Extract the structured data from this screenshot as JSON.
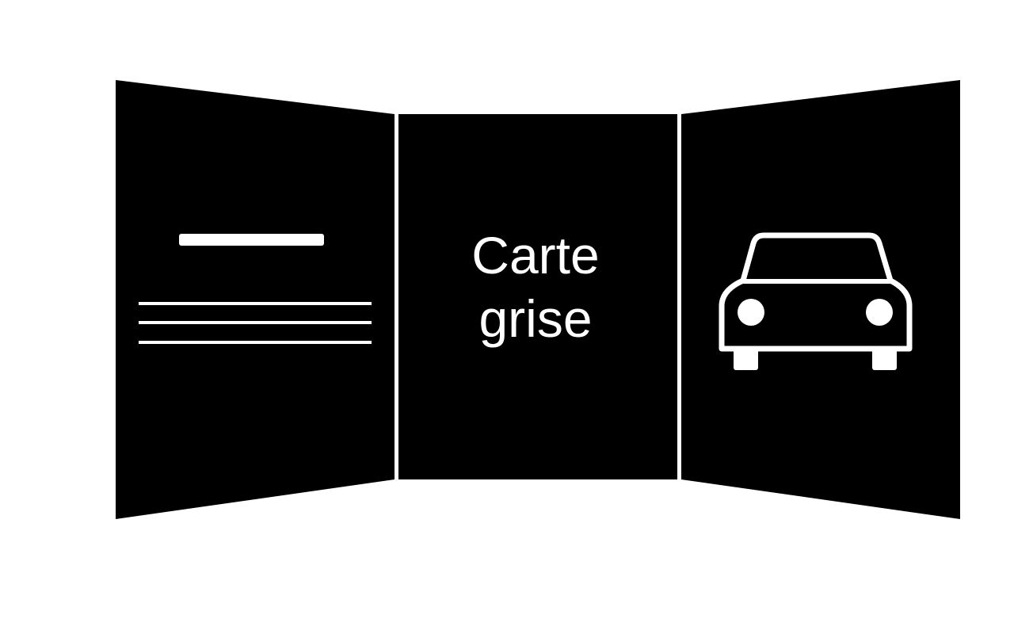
{
  "card": {
    "title_line1": "Carte",
    "title_line2": "grise"
  },
  "colors": {
    "panel": "#000000",
    "ink": "#ffffff",
    "background": "#ffffff"
  },
  "icons": {
    "left_panel": "document-lines-icon",
    "right_panel": "car-front-icon"
  }
}
